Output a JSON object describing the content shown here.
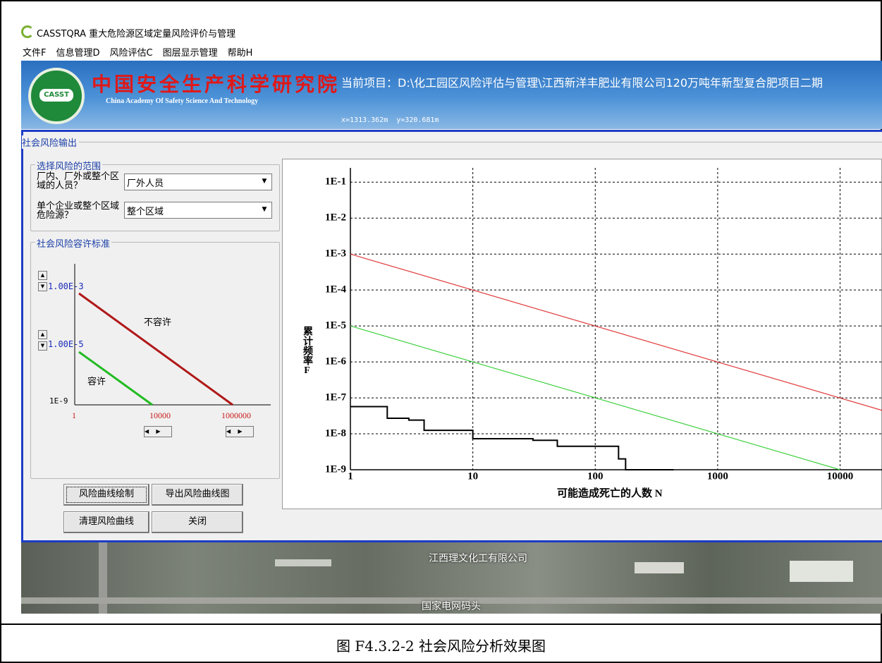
{
  "window": {
    "title": "CASSTQRA 重大危险源区域定量风险评价与管理",
    "menu": [
      "文件F",
      "信息管理D",
      "风险评估C",
      "图层显示管理",
      "帮助H"
    ]
  },
  "banner": {
    "logo": "CASST",
    "org_cn": "中国安全生产科学研究院",
    "org_en": "China Academy Of Safety Science And Technology",
    "project": "当前项目：D:\\化工园区风险评估与管理\\江西新洋丰肥业有限公司120万吨年新型复合肥项目二期",
    "coords": "x=1313.362m  y=320.681m"
  },
  "dialog": {
    "title": "社会风险输出",
    "scope": {
      "title": "选择风险的范围",
      "fields": [
        {
          "label": "厂内、厂外或整个区域的人员？",
          "value": "厂外人员"
        },
        {
          "label": "单个企业或整个区域危险源？",
          "value": "整个区域"
        }
      ]
    },
    "criteria": {
      "title": "社会风险容许标准",
      "upper": "1.00E-3",
      "lower": "1.00E-5",
      "y_min": "1E-9",
      "x_labels": [
        "1",
        "10000",
        "1000000"
      ],
      "unacceptable": "不容许",
      "acceptable": "容许"
    },
    "buttons": [
      "风险曲线绘制",
      "导出风险曲线图",
      "清理风险曲线",
      "关闭"
    ]
  },
  "chart_data": {
    "type": "line",
    "ylabel": "累计频率F",
    "xlabel": "可能造成死亡的人数 N",
    "xlog": true,
    "ylog": true,
    "grid": true,
    "xlim": [
      1,
      22000
    ],
    "ylim": [
      1e-09,
      0.25
    ],
    "xticks": [
      1,
      10,
      100,
      1000,
      10000
    ],
    "yticks": [
      {
        "value": 1e-09,
        "label": "1E-9"
      },
      {
        "value": 1e-08,
        "label": "1E-8"
      },
      {
        "value": 1e-07,
        "label": "1E-7"
      },
      {
        "value": 1e-06,
        "label": "1E-6"
      },
      {
        "value": 1e-05,
        "label": "1E-5"
      },
      {
        "value": 0.0001,
        "label": "1E-4"
      },
      {
        "value": 0.001,
        "label": "1E-3"
      },
      {
        "value": 0.01,
        "label": "1E-2"
      },
      {
        "value": 0.1,
        "label": "1E-1"
      }
    ],
    "series": [
      {
        "color": "#e03a3a",
        "x": [
          1,
          22000
        ],
        "values": [
          0.001,
          4.5e-08
        ]
      },
      {
        "color": "#3fd13f",
        "x": [
          1,
          10000
        ],
        "values": [
          1e-05,
          1e-09
        ]
      },
      {
        "color": "#000000",
        "x": [
          1,
          2,
          2,
          3,
          3,
          4,
          4,
          10,
          10,
          31,
          31,
          49,
          49,
          155,
          155,
          177,
          177,
          437
        ],
        "values": [
          5.7e-08,
          5.7e-08,
          2.7e-08,
          2.7e-08,
          2.4e-08,
          2.4e-08,
          1.25e-08,
          1.25e-08,
          7.3e-09,
          7.3e-09,
          6.6e-09,
          6.6e-09,
          4.5e-09,
          4.5e-09,
          2e-09,
          2e-09,
          1e-09,
          1e-09
        ]
      }
    ]
  },
  "map": {
    "labels": [
      "江西理文化工有限公司",
      "国家电网码头"
    ]
  },
  "caption": "图 F4.3.2-2 社会风险分析效果图"
}
